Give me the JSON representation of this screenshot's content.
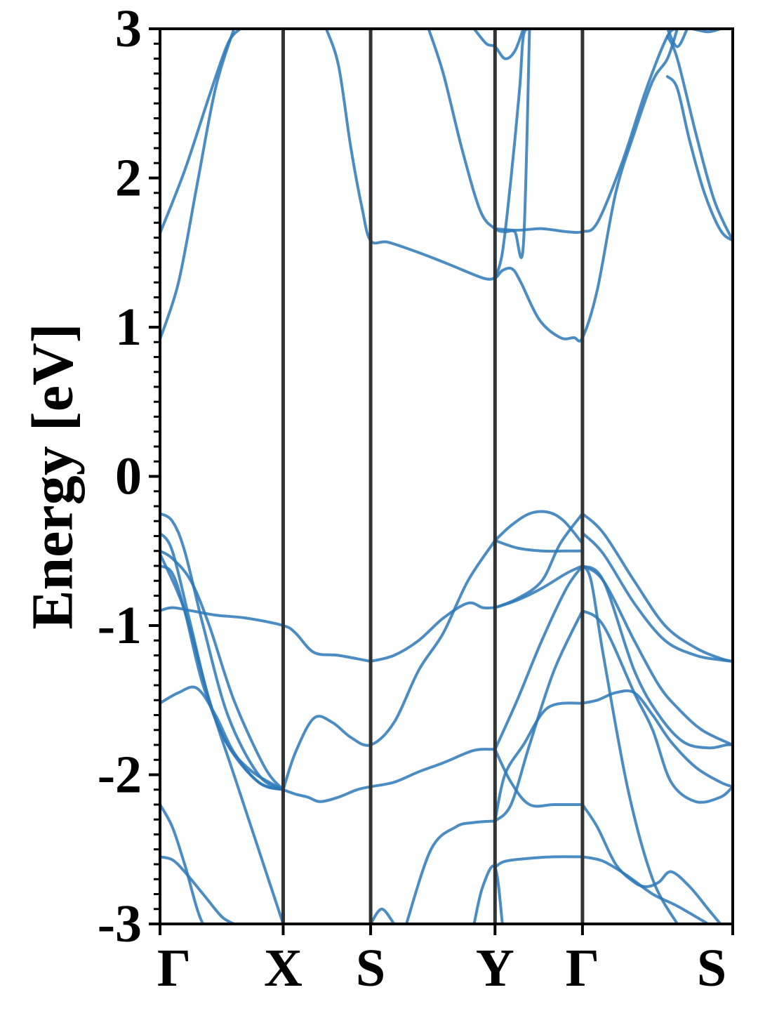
{
  "chart_data": {
    "type": "line",
    "title": "",
    "xlabel": "",
    "ylabel": "Energy [eV]",
    "ylim": [
      -3,
      3
    ],
    "yticks": [
      "-3",
      "-2",
      "-1",
      "0",
      "1",
      "2",
      "3"
    ],
    "kpath_position_range": [
      0,
      4.65
    ],
    "high_symmetry_points": [
      {
        "label": "Γ",
        "position": 0.0
      },
      {
        "label": "X",
        "position": 1.0
      },
      {
        "label": "S",
        "position": 1.71
      },
      {
        "label": "Y",
        "position": 2.72
      },
      {
        "label": "Γ",
        "position": 3.43
      },
      {
        "label": "S",
        "position": 4.65
      }
    ],
    "band_color": "#2b78b8",
    "divider_color": "#333333",
    "grid": false,
    "series": [
      {
        "x": [
          0,
          0.2,
          0.4,
          0.55,
          0.65
        ],
        "y": [
          1.63,
          2.05,
          2.55,
          2.9,
          3.0
        ]
      },
      {
        "x": [
          0,
          0.15,
          0.3,
          0.45,
          0.6
        ],
        "y": [
          0.92,
          1.3,
          1.95,
          2.6,
          3.0
        ]
      },
      {
        "x": [
          1.35,
          1.45,
          1.55,
          1.64,
          1.71,
          1.85,
          2.1,
          2.35,
          2.62,
          2.72,
          2.78,
          2.86,
          2.93,
          3.08,
          3.25,
          3.36,
          3.43,
          3.55,
          3.7,
          3.85,
          4.0,
          4.12,
          4.2
        ],
        "y": [
          3.0,
          2.75,
          2.2,
          1.8,
          1.58,
          1.57,
          1.5,
          1.42,
          1.33,
          1.33,
          1.38,
          1.39,
          1.3,
          1.05,
          0.93,
          0.93,
          0.93,
          1.25,
          1.9,
          2.3,
          2.65,
          2.8,
          3.0
        ]
      },
      {
        "x": [
          2.18,
          2.3,
          2.45,
          2.6,
          2.72,
          2.8,
          2.88,
          2.95,
          3.0
        ],
        "y": [
          3.0,
          2.7,
          2.2,
          1.78,
          1.66,
          1.64,
          1.64,
          1.55,
          3.0
        ]
      },
      {
        "x": [
          2.72,
          2.9,
          3.1,
          3.3,
          3.43,
          3.55,
          3.75,
          3.95,
          4.12,
          4.2
        ],
        "y": [
          1.66,
          1.65,
          1.66,
          1.64,
          1.64,
          1.7,
          2.1,
          2.6,
          2.95,
          3.0
        ]
      },
      {
        "x": [
          2.72,
          2.78,
          2.85,
          2.92,
          2.95,
          3.0
        ],
        "y": [
          1.33,
          1.5,
          2.0,
          2.6,
          2.95,
          3.0
        ]
      },
      {
        "x": [
          2.55,
          2.65,
          2.72,
          2.8,
          2.88,
          2.95
        ],
        "y": [
          3.0,
          2.9,
          2.88,
          2.8,
          2.85,
          3.0
        ]
      },
      {
        "x": [
          4.12,
          4.2,
          4.3,
          4.42,
          4.55,
          4.65
        ],
        "y": [
          2.68,
          2.6,
          2.25,
          1.9,
          1.65,
          1.58
        ]
      },
      {
        "x": [
          4.12,
          4.2,
          4.35,
          4.5,
          4.65
        ],
        "y": [
          2.95,
          2.8,
          2.3,
          1.85,
          1.58
        ]
      },
      {
        "x": [
          4.12,
          4.2,
          4.28
        ],
        "y": [
          3.0,
          2.88,
          3.0
        ]
      },
      {
        "x": [
          4.32,
          4.45,
          4.55
        ],
        "y": [
          3.0,
          2.98,
          3.0
        ]
      },
      {
        "x": [
          0,
          0.1,
          0.25,
          0.45,
          0.7,
          1.0,
          1.1,
          1.25,
          1.45,
          1.71
        ],
        "y": [
          -0.9,
          -0.88,
          -0.9,
          -0.93,
          -0.95,
          -1.0,
          -1.05,
          -1.18,
          -1.2,
          -1.24
        ]
      },
      {
        "x": [
          0,
          0.1,
          0.2,
          0.35,
          0.55,
          0.8,
          1.0
        ],
        "y": [
          -0.6,
          -0.65,
          -0.9,
          -1.4,
          -1.8,
          -2.05,
          -2.1
        ]
      },
      {
        "x": [
          0,
          0.1,
          0.25,
          0.4,
          0.6,
          0.85,
          1.0
        ],
        "y": [
          -0.5,
          -0.55,
          -0.7,
          -1.0,
          -1.5,
          -1.95,
          -2.1
        ]
      },
      {
        "x": [
          0,
          0.1,
          0.2,
          0.35,
          0.55,
          0.8,
          1.0
        ],
        "y": [
          -0.25,
          -0.3,
          -0.5,
          -1.0,
          -1.6,
          -2.0,
          -2.1
        ]
      },
      {
        "x": [
          0,
          0.1,
          0.25,
          0.4,
          0.55,
          0.75,
          1.0
        ],
        "y": [
          -0.38,
          -0.5,
          -1.0,
          -1.5,
          -1.8,
          -1.98,
          -2.1
        ]
      },
      {
        "x": [
          0,
          0.15,
          0.3,
          0.45,
          0.6,
          0.8,
          1.0
        ],
        "y": [
          -1.52,
          -1.45,
          -1.42,
          -1.6,
          -1.85,
          -2.05,
          -2.1
        ]
      },
      {
        "x": [
          0,
          0.1,
          0.2,
          0.35,
          0.5,
          0.7,
          0.9,
          1.0
        ],
        "y": [
          -2.2,
          -2.35,
          -2.6,
          -3.0,
          -3.0,
          -3.0,
          -3.0,
          -3.0
        ]
      },
      {
        "x": [
          0,
          0.2,
          0.4,
          0.6,
          0.8,
          1.0
        ],
        "y": [
          -0.52,
          -0.9,
          -1.5,
          -2.0,
          -2.5,
          -3.0
        ]
      },
      {
        "x": [
          0,
          0.1,
          0.2,
          0.35,
          0.5,
          0.6
        ],
        "y": [
          -2.55,
          -2.57,
          -2.65,
          -2.8,
          -2.95,
          -3.0
        ]
      },
      {
        "x": [
          1.0,
          1.1,
          1.25,
          1.4,
          1.55,
          1.71,
          1.9,
          2.1,
          2.3,
          2.5,
          2.72
        ],
        "y": [
          -2.1,
          -1.85,
          -1.62,
          -1.65,
          -1.75,
          -1.8,
          -1.65,
          -1.3,
          -1.05,
          -0.7,
          -0.43
        ]
      },
      {
        "x": [
          1.0,
          1.1,
          1.2,
          1.3,
          1.45,
          1.6,
          1.71,
          1.9,
          2.1,
          2.3,
          2.5,
          2.6,
          2.72
        ],
        "y": [
          -2.1,
          -2.13,
          -2.15,
          -2.18,
          -2.15,
          -2.1,
          -2.08,
          -2.05,
          -1.98,
          -1.92,
          -1.85,
          -1.83,
          -1.83
        ]
      },
      {
        "x": [
          1.71,
          1.9,
          2.1,
          2.3,
          2.5,
          2.62,
          2.72
        ],
        "y": [
          -1.24,
          -1.2,
          -1.1,
          -0.95,
          -0.85,
          -0.88,
          -0.88
        ]
      },
      {
        "x": [
          1.71,
          1.8,
          1.9
        ],
        "y": [
          -3.0,
          -2.9,
          -3.0
        ]
      },
      {
        "x": [
          2.0,
          2.2,
          2.4,
          2.55,
          2.72
        ],
        "y": [
          -3.0,
          -2.5,
          -2.35,
          -2.32,
          -2.31
        ]
      },
      {
        "x": [
          2.55,
          2.62,
          2.72,
          2.78
        ],
        "y": [
          -3.0,
          -2.75,
          -2.62,
          -3.0
        ]
      },
      {
        "x": [
          2.72,
          2.85,
          3.0,
          3.15,
          3.28,
          3.43
        ],
        "y": [
          -0.43,
          -0.33,
          -0.25,
          -0.24,
          -0.3,
          -0.45
        ]
      },
      {
        "x": [
          2.72,
          2.9,
          3.1,
          3.3,
          3.43
        ],
        "y": [
          -0.43,
          -0.48,
          -0.5,
          -0.5,
          -0.5
        ]
      },
      {
        "x": [
          2.72,
          2.9,
          3.1,
          3.3,
          3.43
        ],
        "y": [
          -0.88,
          -0.83,
          -0.75,
          -0.65,
          -0.6
        ]
      },
      {
        "x": [
          2.72,
          2.9,
          3.1,
          3.25,
          3.43
        ],
        "y": [
          -0.88,
          -0.82,
          -0.7,
          -0.45,
          -0.25
        ]
      },
      {
        "x": [
          2.72,
          2.9,
          3.1,
          3.3,
          3.43
        ],
        "y": [
          -1.83,
          -1.5,
          -1.1,
          -0.75,
          -0.6
        ]
      },
      {
        "x": [
          2.72,
          2.85,
          3.0,
          3.2,
          3.43
        ],
        "y": [
          -2.31,
          -2.2,
          -1.8,
          -1.3,
          -0.9
        ]
      },
      {
        "x": [
          2.72,
          2.85,
          3.0,
          3.2,
          3.43
        ],
        "y": [
          -1.83,
          -2.05,
          -2.2,
          -2.2,
          -2.2
        ]
      },
      {
        "x": [
          2.72,
          2.8,
          2.95,
          3.15,
          3.43
        ],
        "y": [
          -2.31,
          -2.0,
          -1.8,
          -1.55,
          -1.52
        ]
      },
      {
        "x": [
          2.72,
          2.8,
          3.0,
          3.2,
          3.43
        ],
        "y": [
          -2.62,
          -2.58,
          -2.56,
          -2.55,
          -2.55
        ]
      },
      {
        "x": [
          3.43,
          3.6,
          3.85,
          4.1,
          4.35,
          4.55,
          4.65
        ],
        "y": [
          -0.25,
          -0.38,
          -0.7,
          -1.0,
          -1.15,
          -1.22,
          -1.24
        ]
      },
      {
        "x": [
          3.43,
          3.6,
          3.85,
          4.1,
          4.35,
          4.55,
          4.65
        ],
        "y": [
          -0.38,
          -0.52,
          -0.85,
          -1.1,
          -1.2,
          -1.23,
          -1.24
        ]
      },
      {
        "x": [
          3.43,
          3.6,
          3.85,
          4.05,
          4.2,
          4.4,
          4.65
        ],
        "y": [
          -0.6,
          -0.7,
          -1.1,
          -1.4,
          -1.55,
          -1.7,
          -1.8
        ]
      },
      {
        "x": [
          3.43,
          3.6,
          3.85,
          4.05,
          4.25,
          4.45,
          4.6,
          4.65
        ],
        "y": [
          -0.6,
          -0.7,
          -1.3,
          -1.6,
          -1.78,
          -1.82,
          -1.8,
          -1.8
        ]
      },
      {
        "x": [
          3.43,
          3.6,
          3.85,
          4.0,
          4.15,
          4.35,
          4.55,
          4.65
        ],
        "y": [
          -0.9,
          -1.0,
          -1.45,
          -1.7,
          -2.05,
          -2.18,
          -2.15,
          -2.08
        ]
      },
      {
        "x": [
          3.43,
          3.55,
          3.7,
          3.85,
          4.0,
          4.15,
          4.35,
          4.55,
          4.65
        ],
        "y": [
          -1.52,
          -1.5,
          -1.45,
          -1.45,
          -1.6,
          -1.78,
          -1.95,
          -2.05,
          -2.08
        ]
      },
      {
        "x": [
          3.43,
          3.5,
          3.6,
          3.8,
          4.0,
          4.2
        ],
        "y": [
          -0.6,
          -0.7,
          -1.2,
          -2.1,
          -2.7,
          -3.0
        ]
      },
      {
        "x": [
          3.43,
          3.55,
          3.7,
          3.85,
          3.95,
          4.05,
          4.15,
          4.3,
          4.45,
          4.55
        ],
        "y": [
          -2.2,
          -2.35,
          -2.6,
          -2.72,
          -2.75,
          -2.72,
          -2.65,
          -2.75,
          -2.9,
          -3.0
        ]
      },
      {
        "x": [
          3.43,
          3.6,
          3.8,
          4.0,
          4.2,
          4.45
        ],
        "y": [
          -2.55,
          -2.58,
          -2.68,
          -2.8,
          -2.88,
          -3.0
        ]
      }
    ]
  }
}
